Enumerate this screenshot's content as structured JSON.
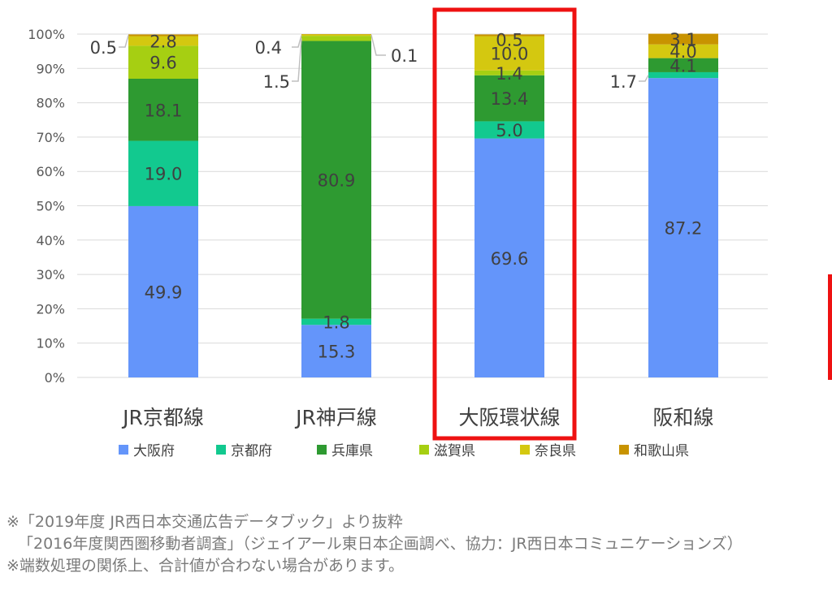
{
  "chart_data": {
    "type": "bar",
    "stacked": true,
    "categories": [
      "JR京都線",
      "JR神戸線",
      "大阪環状線",
      "阪和線"
    ],
    "y_ticks": [
      "0%",
      "10%",
      "20%",
      "30%",
      "40%",
      "50%",
      "60%",
      "70%",
      "80%",
      "90%",
      "100%"
    ],
    "ylim": [
      0,
      100
    ],
    "grid": true,
    "legend_position": "bottom",
    "highlighted_category": "大阪環状線",
    "series": [
      {
        "name": "大阪府",
        "color": "#6495fa",
        "values": [
          49.9,
          15.3,
          69.6,
          87.2
        ],
        "labels": [
          "49.9",
          "15.3",
          "69.6",
          "87.2"
        ]
      },
      {
        "name": "京都府",
        "color": "#12c98f",
        "values": [
          19.0,
          1.8,
          5.0,
          1.7
        ],
        "labels": [
          "19.0",
          "1.8",
          "5.0",
          "1.7"
        ]
      },
      {
        "name": "兵庫県",
        "color": "#2e9a31",
        "values": [
          18.1,
          80.9,
          13.4,
          4.1
        ],
        "labels": [
          "18.1",
          "80.9",
          "13.4",
          "4.1"
        ]
      },
      {
        "name": "滋賀県",
        "color": "#a6cf12",
        "values": [
          9.6,
          1.5,
          1.4,
          0.0
        ],
        "labels": [
          "9.6",
          "1.5",
          "1.4",
          ""
        ]
      },
      {
        "name": "奈良県",
        "color": "#d4c810",
        "values": [
          2.8,
          0.4,
          10.0,
          4.0
        ],
        "labels": [
          "2.8",
          "0.4",
          "10.0",
          "4.0"
        ]
      },
      {
        "name": "和歌山県",
        "color": "#c89300",
        "values": [
          0.5,
          0.1,
          0.5,
          3.1
        ],
        "labels": [
          "0.5",
          "0.1",
          "0.5",
          "3.1"
        ]
      }
    ]
  },
  "notes": {
    "line1": "※「2019年度 JR西日本交通広告データブック」より抜粋",
    "line2": "「2016年度関西圏移動者調査」（ジェイアール東日本企画調べ、協力：JR西日本コミュニケーションズ）",
    "line3": "※端数処理の関係上、合計値が合わない場合があります。"
  }
}
